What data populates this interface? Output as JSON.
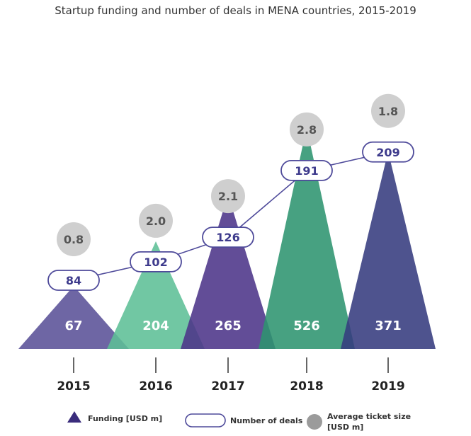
{
  "chart_data": {
    "type": "area",
    "title": "Startup funding and number of deals in MENA countries, 2015-2019",
    "categories": [
      "2015",
      "2016",
      "2017",
      "2018",
      "2019"
    ],
    "series": [
      {
        "name": "Funding [USD m]",
        "values": [
          67,
          204,
          265,
          526,
          371
        ],
        "colors": [
          "#5a5197",
          "#5dbf96",
          "#4c3489",
          "#2e9470",
          "#353b7e"
        ]
      },
      {
        "name": "Number of deals",
        "values": [
          84,
          102,
          126,
          191,
          209
        ]
      },
      {
        "name": "Average ticket size [USD m]",
        "values": [
          0.8,
          2.0,
          2.1,
          2.8,
          1.8
        ]
      }
    ],
    "legend_position": "bottom",
    "grid": false
  },
  "legend": {
    "funding": "Funding [USD m]",
    "deals": "Number of deals",
    "ticket_line1": "Average ticket size",
    "ticket_line2": "[USD m]"
  },
  "colors": {
    "pill_border": "#4e4a9a",
    "pill_text": "#3d3a8c",
    "circle_fill": "#cfcfcf",
    "circle_text": "#555555",
    "axis": "#333333"
  }
}
